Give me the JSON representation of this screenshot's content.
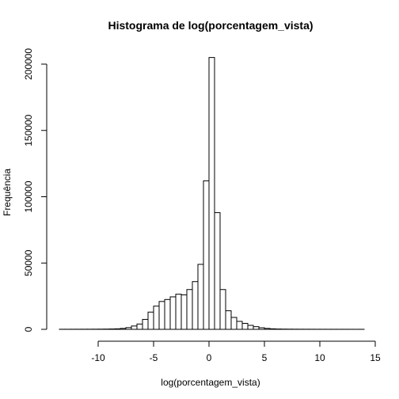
{
  "chart_data": {
    "type": "bar",
    "title": "Histograma de log(porcentagem_vista)",
    "xlabel": "log(porcentagem_vista)",
    "ylabel": "Frequência",
    "xlim": [
      -13.5,
      14
    ],
    "ylim": [
      0,
      205000
    ],
    "x_ticks": [
      -10,
      -5,
      0,
      5,
      10,
      15
    ],
    "x_tick_labels": [
      "-10",
      "-5",
      "0",
      "5",
      "10",
      "15"
    ],
    "y_ticks": [
      0,
      50000,
      100000,
      150000,
      200000
    ],
    "y_tick_labels": [
      "0",
      "50000",
      "100000",
      "150000",
      "200000"
    ],
    "grid": false,
    "legend": "none",
    "bin_width": 0.5,
    "bins": [
      {
        "x0": -13.5,
        "x1": -13.0,
        "count": 60
      },
      {
        "x0": -13.0,
        "x1": -12.5,
        "count": 60
      },
      {
        "x0": -12.5,
        "x1": -12.0,
        "count": 70
      },
      {
        "x0": -12.0,
        "x1": -11.5,
        "count": 80
      },
      {
        "x0": -11.5,
        "x1": -11.0,
        "count": 90
      },
      {
        "x0": -11.0,
        "x1": -10.5,
        "count": 100
      },
      {
        "x0": -10.5,
        "x1": -10.0,
        "count": 120
      },
      {
        "x0": -10.0,
        "x1": -9.5,
        "count": 150
      },
      {
        "x0": -9.5,
        "x1": -9.0,
        "count": 200
      },
      {
        "x0": -9.0,
        "x1": -8.5,
        "count": 280
      },
      {
        "x0": -8.5,
        "x1": -8.0,
        "count": 400
      },
      {
        "x0": -8.0,
        "x1": -7.5,
        "count": 700
      },
      {
        "x0": -7.5,
        "x1": -7.0,
        "count": 1300
      },
      {
        "x0": -7.0,
        "x1": -6.5,
        "count": 2500
      },
      {
        "x0": -6.5,
        "x1": -6.0,
        "count": 4000
      },
      {
        "x0": -6.0,
        "x1": -5.5,
        "count": 7500
      },
      {
        "x0": -5.5,
        "x1": -5.0,
        "count": 13000
      },
      {
        "x0": -5.0,
        "x1": -4.5,
        "count": 17500
      },
      {
        "x0": -4.5,
        "x1": -4.0,
        "count": 21000
      },
      {
        "x0": -4.0,
        "x1": -3.5,
        "count": 22500
      },
      {
        "x0": -3.5,
        "x1": -3.0,
        "count": 24500
      },
      {
        "x0": -3.0,
        "x1": -2.5,
        "count": 26500
      },
      {
        "x0": -2.5,
        "x1": -2.0,
        "count": 26000
      },
      {
        "x0": -2.0,
        "x1": -1.5,
        "count": 30000
      },
      {
        "x0": -1.5,
        "x1": -1.0,
        "count": 36000
      },
      {
        "x0": -1.0,
        "x1": -0.5,
        "count": 49000
      },
      {
        "x0": -0.5,
        "x1": 0.0,
        "count": 112000
      },
      {
        "x0": 0.0,
        "x1": 0.5,
        "count": 205000
      },
      {
        "x0": 0.5,
        "x1": 1.0,
        "count": 88000
      },
      {
        "x0": 1.0,
        "x1": 1.5,
        "count": 30000
      },
      {
        "x0": 1.5,
        "x1": 2.0,
        "count": 14000
      },
      {
        "x0": 2.0,
        "x1": 2.5,
        "count": 9000
      },
      {
        "x0": 2.5,
        "x1": 3.0,
        "count": 6000
      },
      {
        "x0": 3.0,
        "x1": 3.5,
        "count": 4500
      },
      {
        "x0": 3.5,
        "x1": 4.0,
        "count": 3000
      },
      {
        "x0": 4.0,
        "x1": 4.5,
        "count": 2000
      },
      {
        "x0": 4.5,
        "x1": 5.0,
        "count": 1200
      },
      {
        "x0": 5.0,
        "x1": 5.5,
        "count": 700
      },
      {
        "x0": 5.5,
        "x1": 6.0,
        "count": 400
      },
      {
        "x0": 6.0,
        "x1": 6.5,
        "count": 250
      },
      {
        "x0": 6.5,
        "x1": 7.0,
        "count": 180
      },
      {
        "x0": 7.0,
        "x1": 7.5,
        "count": 140
      },
      {
        "x0": 7.5,
        "x1": 8.0,
        "count": 110
      },
      {
        "x0": 8.0,
        "x1": 8.5,
        "count": 90
      },
      {
        "x0": 8.5,
        "x1": 9.0,
        "count": 80
      },
      {
        "x0": 9.0,
        "x1": 9.5,
        "count": 70
      },
      {
        "x0": 9.5,
        "x1": 10.0,
        "count": 60
      },
      {
        "x0": 10.0,
        "x1": 10.5,
        "count": 55
      },
      {
        "x0": 10.5,
        "x1": 11.0,
        "count": 50
      },
      {
        "x0": 11.0,
        "x1": 11.5,
        "count": 45
      },
      {
        "x0": 11.5,
        "x1": 12.0,
        "count": 40
      },
      {
        "x0": 12.0,
        "x1": 12.5,
        "count": 40
      },
      {
        "x0": 12.5,
        "x1": 13.0,
        "count": 35
      },
      {
        "x0": 13.0,
        "x1": 13.5,
        "count": 30
      },
      {
        "x0": 13.5,
        "x1": 14.0,
        "count": 30
      }
    ]
  }
}
